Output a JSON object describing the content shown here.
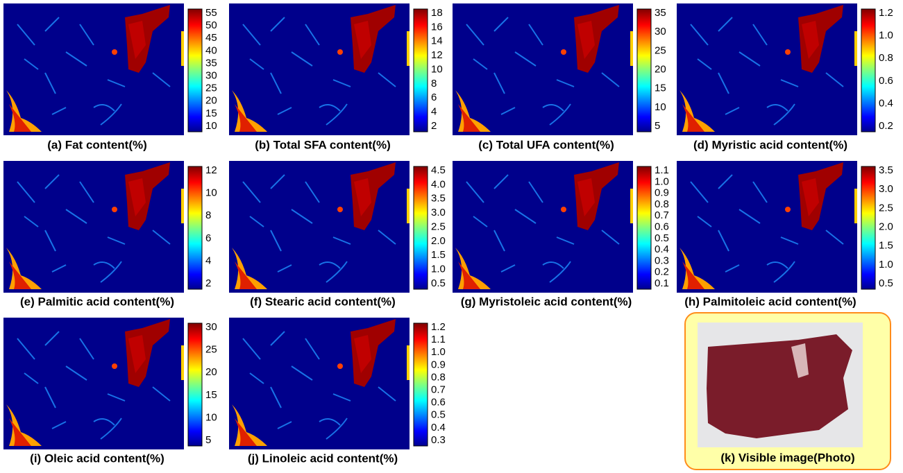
{
  "panels": [
    {
      "caption": "(a) Fat content(%)",
      "ticks": [
        "55",
        "50",
        "45",
        "40",
        "35",
        "30",
        "25",
        "20",
        "15",
        "10"
      ]
    },
    {
      "caption": "(b) Total SFA content(%)",
      "ticks": [
        "18",
        "16",
        "14",
        "12",
        "10",
        "8",
        "6",
        "4",
        "2"
      ]
    },
    {
      "caption": "(c) Total UFA content(%)",
      "ticks": [
        "35",
        "30",
        "25",
        "20",
        "15",
        "10",
        "5"
      ]
    },
    {
      "caption": "(d) Myristic acid content(%)",
      "ticks": [
        "1.2",
        "1.0",
        "0.8",
        "0.6",
        "0.4",
        "0.2"
      ]
    },
    {
      "caption": "(e) Palmitic acid content(%)",
      "ticks": [
        "12",
        "10",
        "8",
        "6",
        "4",
        "2"
      ]
    },
    {
      "caption": "(f) Stearic acid content(%)",
      "ticks": [
        "4.5",
        "4.0",
        "3.5",
        "3.0",
        "2.5",
        "2.0",
        "1.5",
        "1.0",
        "0.5"
      ]
    },
    {
      "caption": "(g) Myristoleic acid content(%)",
      "ticks": [
        "1.1",
        "1.0",
        "0.9",
        "0.8",
        "0.7",
        "0.6",
        "0.5",
        "0.4",
        "0.3",
        "0.2",
        "0.1"
      ]
    },
    {
      "caption": "(h) Palmitoleic acid content(%)",
      "ticks": [
        "3.5",
        "3.0",
        "2.5",
        "2.0",
        "1.5",
        "1.0",
        "0.5"
      ]
    },
    {
      "caption": "(i) Oleic acid content(%)",
      "ticks": [
        "30",
        "25",
        "20",
        "15",
        "10",
        "5"
      ]
    },
    {
      "caption": "(j) Linoleic acid content(%)",
      "ticks": [
        "1.2",
        "1.1",
        "1.0",
        "0.9",
        "0.8",
        "0.7",
        "0.6",
        "0.5",
        "0.4",
        "0.3"
      ]
    }
  ],
  "photo": {
    "caption": "(k) Visible image(Photo)"
  }
}
